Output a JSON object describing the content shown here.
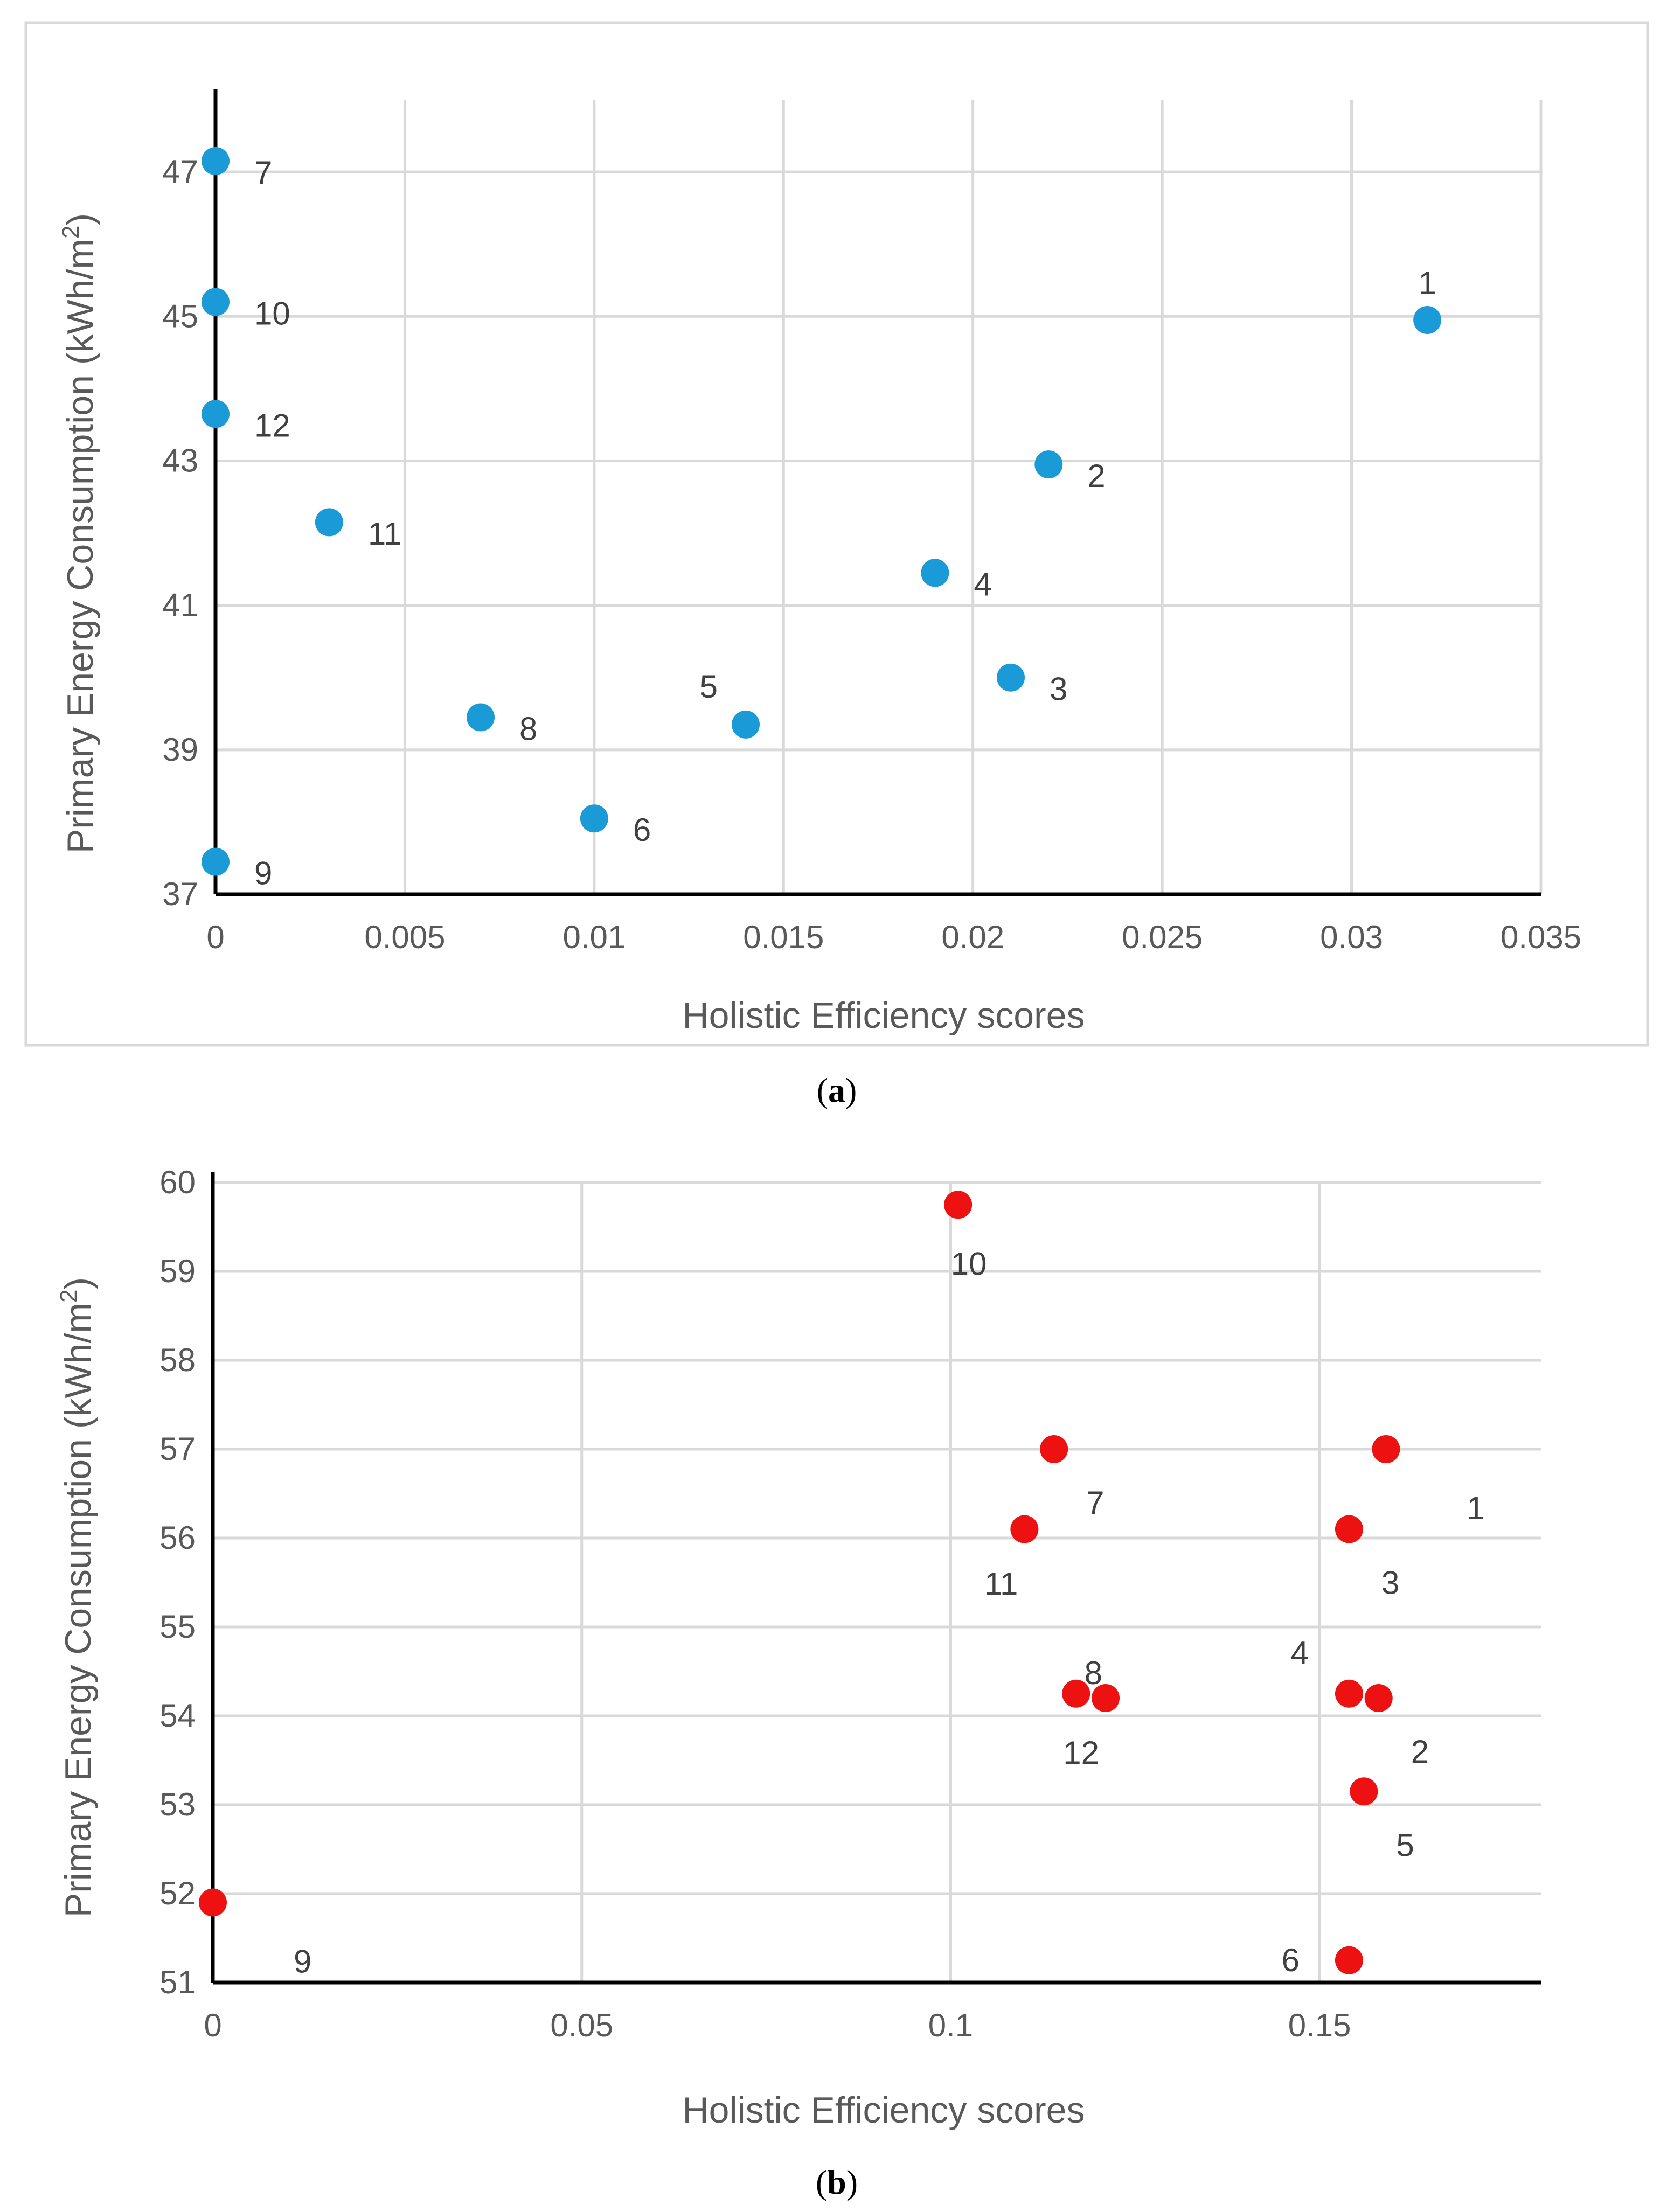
{
  "chart_data": [
    {
      "type": "scatter",
      "panel": "a",
      "caption_letter": "a",
      "xlabel": "Holistic Efficiency scores",
      "ylabel": "Primary Energy Consumption (kWh/m",
      "ylabel_sup": "2",
      "ylabel_close": ")",
      "xlim": [
        0,
        0.035
      ],
      "ylim": [
        37,
        48
      ],
      "xticks": [
        0,
        0.005,
        0.01,
        0.015,
        0.02,
        0.025,
        0.03,
        0.035
      ],
      "xtick_labels": [
        "0",
        "0.005",
        "0.01",
        "0.015",
        "0.02",
        "0.025",
        "0.03",
        "0.035"
      ],
      "yticks": [
        37,
        39,
        41,
        43,
        45,
        47
      ],
      "ytick_labels": [
        "37",
        "39",
        "41",
        "43",
        "45",
        "47"
      ],
      "marker_color": "#1a9bd7",
      "points": [
        {
          "label": "1",
          "x": 0.032,
          "y": 44.95,
          "pos": "above"
        },
        {
          "label": "2",
          "x": 0.022,
          "y": 42.95,
          "pos": "right"
        },
        {
          "label": "3",
          "x": 0.021,
          "y": 40.0,
          "pos": "right"
        },
        {
          "label": "4",
          "x": 0.019,
          "y": 41.45,
          "pos": "right"
        },
        {
          "label": "5",
          "x": 0.014,
          "y": 39.35,
          "pos": "upper-left"
        },
        {
          "label": "6",
          "x": 0.01,
          "y": 38.05,
          "pos": "right"
        },
        {
          "label": "7",
          "x": 0.0,
          "y": 47.15,
          "pos": "right"
        },
        {
          "label": "8",
          "x": 0.007,
          "y": 39.45,
          "pos": "right"
        },
        {
          "label": "9",
          "x": 0.0,
          "y": 37.45,
          "pos": "right"
        },
        {
          "label": "10",
          "x": 0.0,
          "y": 45.2,
          "pos": "right"
        },
        {
          "label": "11",
          "x": 0.003,
          "y": 42.15,
          "pos": "right"
        },
        {
          "label": "12",
          "x": 0.0,
          "y": 43.65,
          "pos": "right"
        }
      ]
    },
    {
      "type": "scatter",
      "panel": "b",
      "caption_letter": "b",
      "xlabel": "Holistic Efficiency scores",
      "ylabel": "Primary Energy Consumption (kWh/m",
      "ylabel_sup": "2",
      "ylabel_close": ")",
      "xlim": [
        0,
        0.18
      ],
      "ylim": [
        51,
        60
      ],
      "xticks": [
        0,
        0.05,
        0.1,
        0.15
      ],
      "xtick_labels": [
        "0",
        "0.05",
        "0.1",
        "0.15"
      ],
      "yticks": [
        51,
        52,
        53,
        54,
        55,
        56,
        57,
        58,
        59,
        60
      ],
      "ytick_labels": [
        "51",
        "52",
        "53",
        "54",
        "55",
        "56",
        "57",
        "58",
        "59",
        "60"
      ],
      "marker_color": "#ee1111",
      "points": [
        {
          "label": "1",
          "x": 0.159,
          "y": 57.0,
          "pos": "far-lower-right"
        },
        {
          "label": "2",
          "x": 0.158,
          "y": 54.2,
          "pos": "below-right"
        },
        {
          "label": "3",
          "x": 0.154,
          "y": 56.1,
          "pos": "below-right"
        },
        {
          "label": "4",
          "x": 0.154,
          "y": 54.25,
          "pos": "upper-left"
        },
        {
          "label": "5",
          "x": 0.156,
          "y": 53.15,
          "pos": "below-right"
        },
        {
          "label": "6",
          "x": 0.154,
          "y": 51.25,
          "pos": "left"
        },
        {
          "label": "7",
          "x": 0.114,
          "y": 57.0,
          "pos": "below-right"
        },
        {
          "label": "8",
          "x": 0.117,
          "y": 54.25,
          "pos": "upper-left-near"
        },
        {
          "label": "9",
          "x": 0.0,
          "y": 51.9,
          "pos": "far-lower-right"
        },
        {
          "label": "10",
          "x": 0.101,
          "y": 59.75,
          "pos": "below"
        },
        {
          "label": "11",
          "x": 0.11,
          "y": 56.1,
          "pos": "below-left"
        },
        {
          "label": "12",
          "x": 0.121,
          "y": 54.2,
          "pos": "below-left"
        }
      ]
    }
  ]
}
